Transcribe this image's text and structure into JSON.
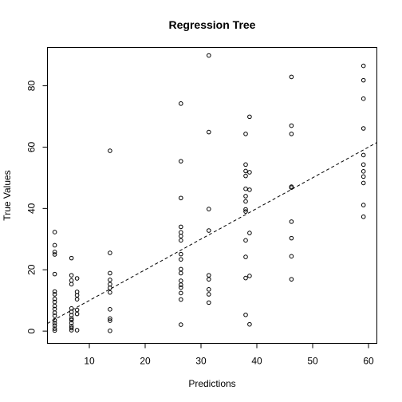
{
  "chart_data": {
    "type": "scatter",
    "title": "Regression Tree",
    "xlabel": "Predictions",
    "ylabel": "True Values",
    "xlim": [
      2.5,
      61.5
    ],
    "ylim": [
      -4,
      92.5
    ],
    "xticks": [
      10,
      20,
      30,
      40,
      50,
      60
    ],
    "yticks": [
      0,
      20,
      40,
      60,
      80
    ],
    "grid": false,
    "reference_line": {
      "style": "dashed",
      "intercept": 0,
      "slope": 1
    },
    "points": [
      {
        "x": 3.8,
        "y": 32.3
      },
      {
        "x": 3.8,
        "y": 28
      },
      {
        "x": 3.8,
        "y": 25.8
      },
      {
        "x": 3.8,
        "y": 25
      },
      {
        "x": 3.8,
        "y": 18.6
      },
      {
        "x": 3.8,
        "y": 12.9
      },
      {
        "x": 3.8,
        "y": 12
      },
      {
        "x": 3.8,
        "y": 10.5
      },
      {
        "x": 3.8,
        "y": 9.5
      },
      {
        "x": 3.8,
        "y": 8.2
      },
      {
        "x": 3.8,
        "y": 7.2
      },
      {
        "x": 3.8,
        "y": 6
      },
      {
        "x": 3.8,
        "y": 5
      },
      {
        "x": 3.8,
        "y": 3.5
      },
      {
        "x": 3.8,
        "y": 2.6
      },
      {
        "x": 3.8,
        "y": 1.8
      },
      {
        "x": 3.8,
        "y": 0.8
      },
      {
        "x": 3.8,
        "y": 0.2
      },
      {
        "x": 6.8,
        "y": 23.8
      },
      {
        "x": 6.8,
        "y": 18.2
      },
      {
        "x": 6.8,
        "y": 16.5
      },
      {
        "x": 6.8,
        "y": 15.3
      },
      {
        "x": 6.8,
        "y": 7.4
      },
      {
        "x": 6.8,
        "y": 6.3
      },
      {
        "x": 6.8,
        "y": 5.2
      },
      {
        "x": 6.8,
        "y": 4.1
      },
      {
        "x": 6.8,
        "y": 3.6
      },
      {
        "x": 6.8,
        "y": 2.6
      },
      {
        "x": 6.8,
        "y": 1.6
      },
      {
        "x": 6.8,
        "y": 1
      },
      {
        "x": 6.8,
        "y": 0.3
      },
      {
        "x": 7.8,
        "y": 17.2
      },
      {
        "x": 7.8,
        "y": 12.8
      },
      {
        "x": 7.8,
        "y": 11.7
      },
      {
        "x": 7.8,
        "y": 10.4
      },
      {
        "x": 7.8,
        "y": 6.9
      },
      {
        "x": 7.8,
        "y": 5.6
      },
      {
        "x": 7.8,
        "y": 0.3
      },
      {
        "x": 13.7,
        "y": 58.8
      },
      {
        "x": 13.7,
        "y": 25.5
      },
      {
        "x": 13.7,
        "y": 18.9
      },
      {
        "x": 13.7,
        "y": 16.7
      },
      {
        "x": 13.7,
        "y": 15.3
      },
      {
        "x": 13.7,
        "y": 14.1
      },
      {
        "x": 13.7,
        "y": 12.6
      },
      {
        "x": 13.7,
        "y": 7.1
      },
      {
        "x": 13.7,
        "y": 4.1
      },
      {
        "x": 13.7,
        "y": 3.4
      },
      {
        "x": 13.7,
        "y": 0.1
      },
      {
        "x": 26.4,
        "y": 74.2
      },
      {
        "x": 26.4,
        "y": 55.4
      },
      {
        "x": 26.4,
        "y": 43.4
      },
      {
        "x": 26.4,
        "y": 34
      },
      {
        "x": 26.4,
        "y": 32.2
      },
      {
        "x": 26.4,
        "y": 31
      },
      {
        "x": 26.4,
        "y": 29.6
      },
      {
        "x": 26.4,
        "y": 25.1
      },
      {
        "x": 26.4,
        "y": 23.4
      },
      {
        "x": 26.4,
        "y": 20.2
      },
      {
        "x": 26.4,
        "y": 18.9
      },
      {
        "x": 26.4,
        "y": 16.4
      },
      {
        "x": 26.4,
        "y": 15.1
      },
      {
        "x": 26.4,
        "y": 14.2
      },
      {
        "x": 26.4,
        "y": 12.4
      },
      {
        "x": 26.4,
        "y": 10.3
      },
      {
        "x": 26.4,
        "y": 2.1
      },
      {
        "x": 31.4,
        "y": 89.9
      },
      {
        "x": 31.4,
        "y": 64.9
      },
      {
        "x": 31.4,
        "y": 39.8
      },
      {
        "x": 31.4,
        "y": 32.8
      },
      {
        "x": 31.4,
        "y": 18.2
      },
      {
        "x": 31.4,
        "y": 16.9
      },
      {
        "x": 31.4,
        "y": 13.6
      },
      {
        "x": 31.4,
        "y": 12
      },
      {
        "x": 31.4,
        "y": 9.3
      },
      {
        "x": 38,
        "y": 64.3
      },
      {
        "x": 38,
        "y": 54.3
      },
      {
        "x": 38,
        "y": 52.2
      },
      {
        "x": 38,
        "y": 50.6
      },
      {
        "x": 38,
        "y": 46.4
      },
      {
        "x": 38,
        "y": 44
      },
      {
        "x": 38,
        "y": 42.3
      },
      {
        "x": 38,
        "y": 39.7
      },
      {
        "x": 38,
        "y": 39
      },
      {
        "x": 38,
        "y": 29.6
      },
      {
        "x": 38,
        "y": 24.2
      },
      {
        "x": 38,
        "y": 17.3
      },
      {
        "x": 38,
        "y": 5.3
      },
      {
        "x": 38.7,
        "y": 69.9
      },
      {
        "x": 38.7,
        "y": 51.8
      },
      {
        "x": 38.7,
        "y": 46.1
      },
      {
        "x": 38.7,
        "y": 32
      },
      {
        "x": 38.7,
        "y": 18
      },
      {
        "x": 38.7,
        "y": 2.2
      },
      {
        "x": 46.2,
        "y": 82.9
      },
      {
        "x": 46.2,
        "y": 67
      },
      {
        "x": 46.2,
        "y": 64.3
      },
      {
        "x": 46.2,
        "y": 47.1
      },
      {
        "x": 46.2,
        "y": 46.8
      },
      {
        "x": 46.2,
        "y": 35.7
      },
      {
        "x": 46.2,
        "y": 30.3
      },
      {
        "x": 46.2,
        "y": 24.4
      },
      {
        "x": 46.2,
        "y": 16.9
      },
      {
        "x": 59.1,
        "y": 86.5
      },
      {
        "x": 59.1,
        "y": 81.8
      },
      {
        "x": 59.1,
        "y": 75.8
      },
      {
        "x": 59.1,
        "y": 66.1
      },
      {
        "x": 59.1,
        "y": 57.4
      },
      {
        "x": 59.1,
        "y": 54.3
      },
      {
        "x": 59.1,
        "y": 52.1
      },
      {
        "x": 59.1,
        "y": 50.4
      },
      {
        "x": 59.1,
        "y": 48.3
      },
      {
        "x": 59.1,
        "y": 41.1
      },
      {
        "x": 59.1,
        "y": 37.3
      }
    ]
  }
}
